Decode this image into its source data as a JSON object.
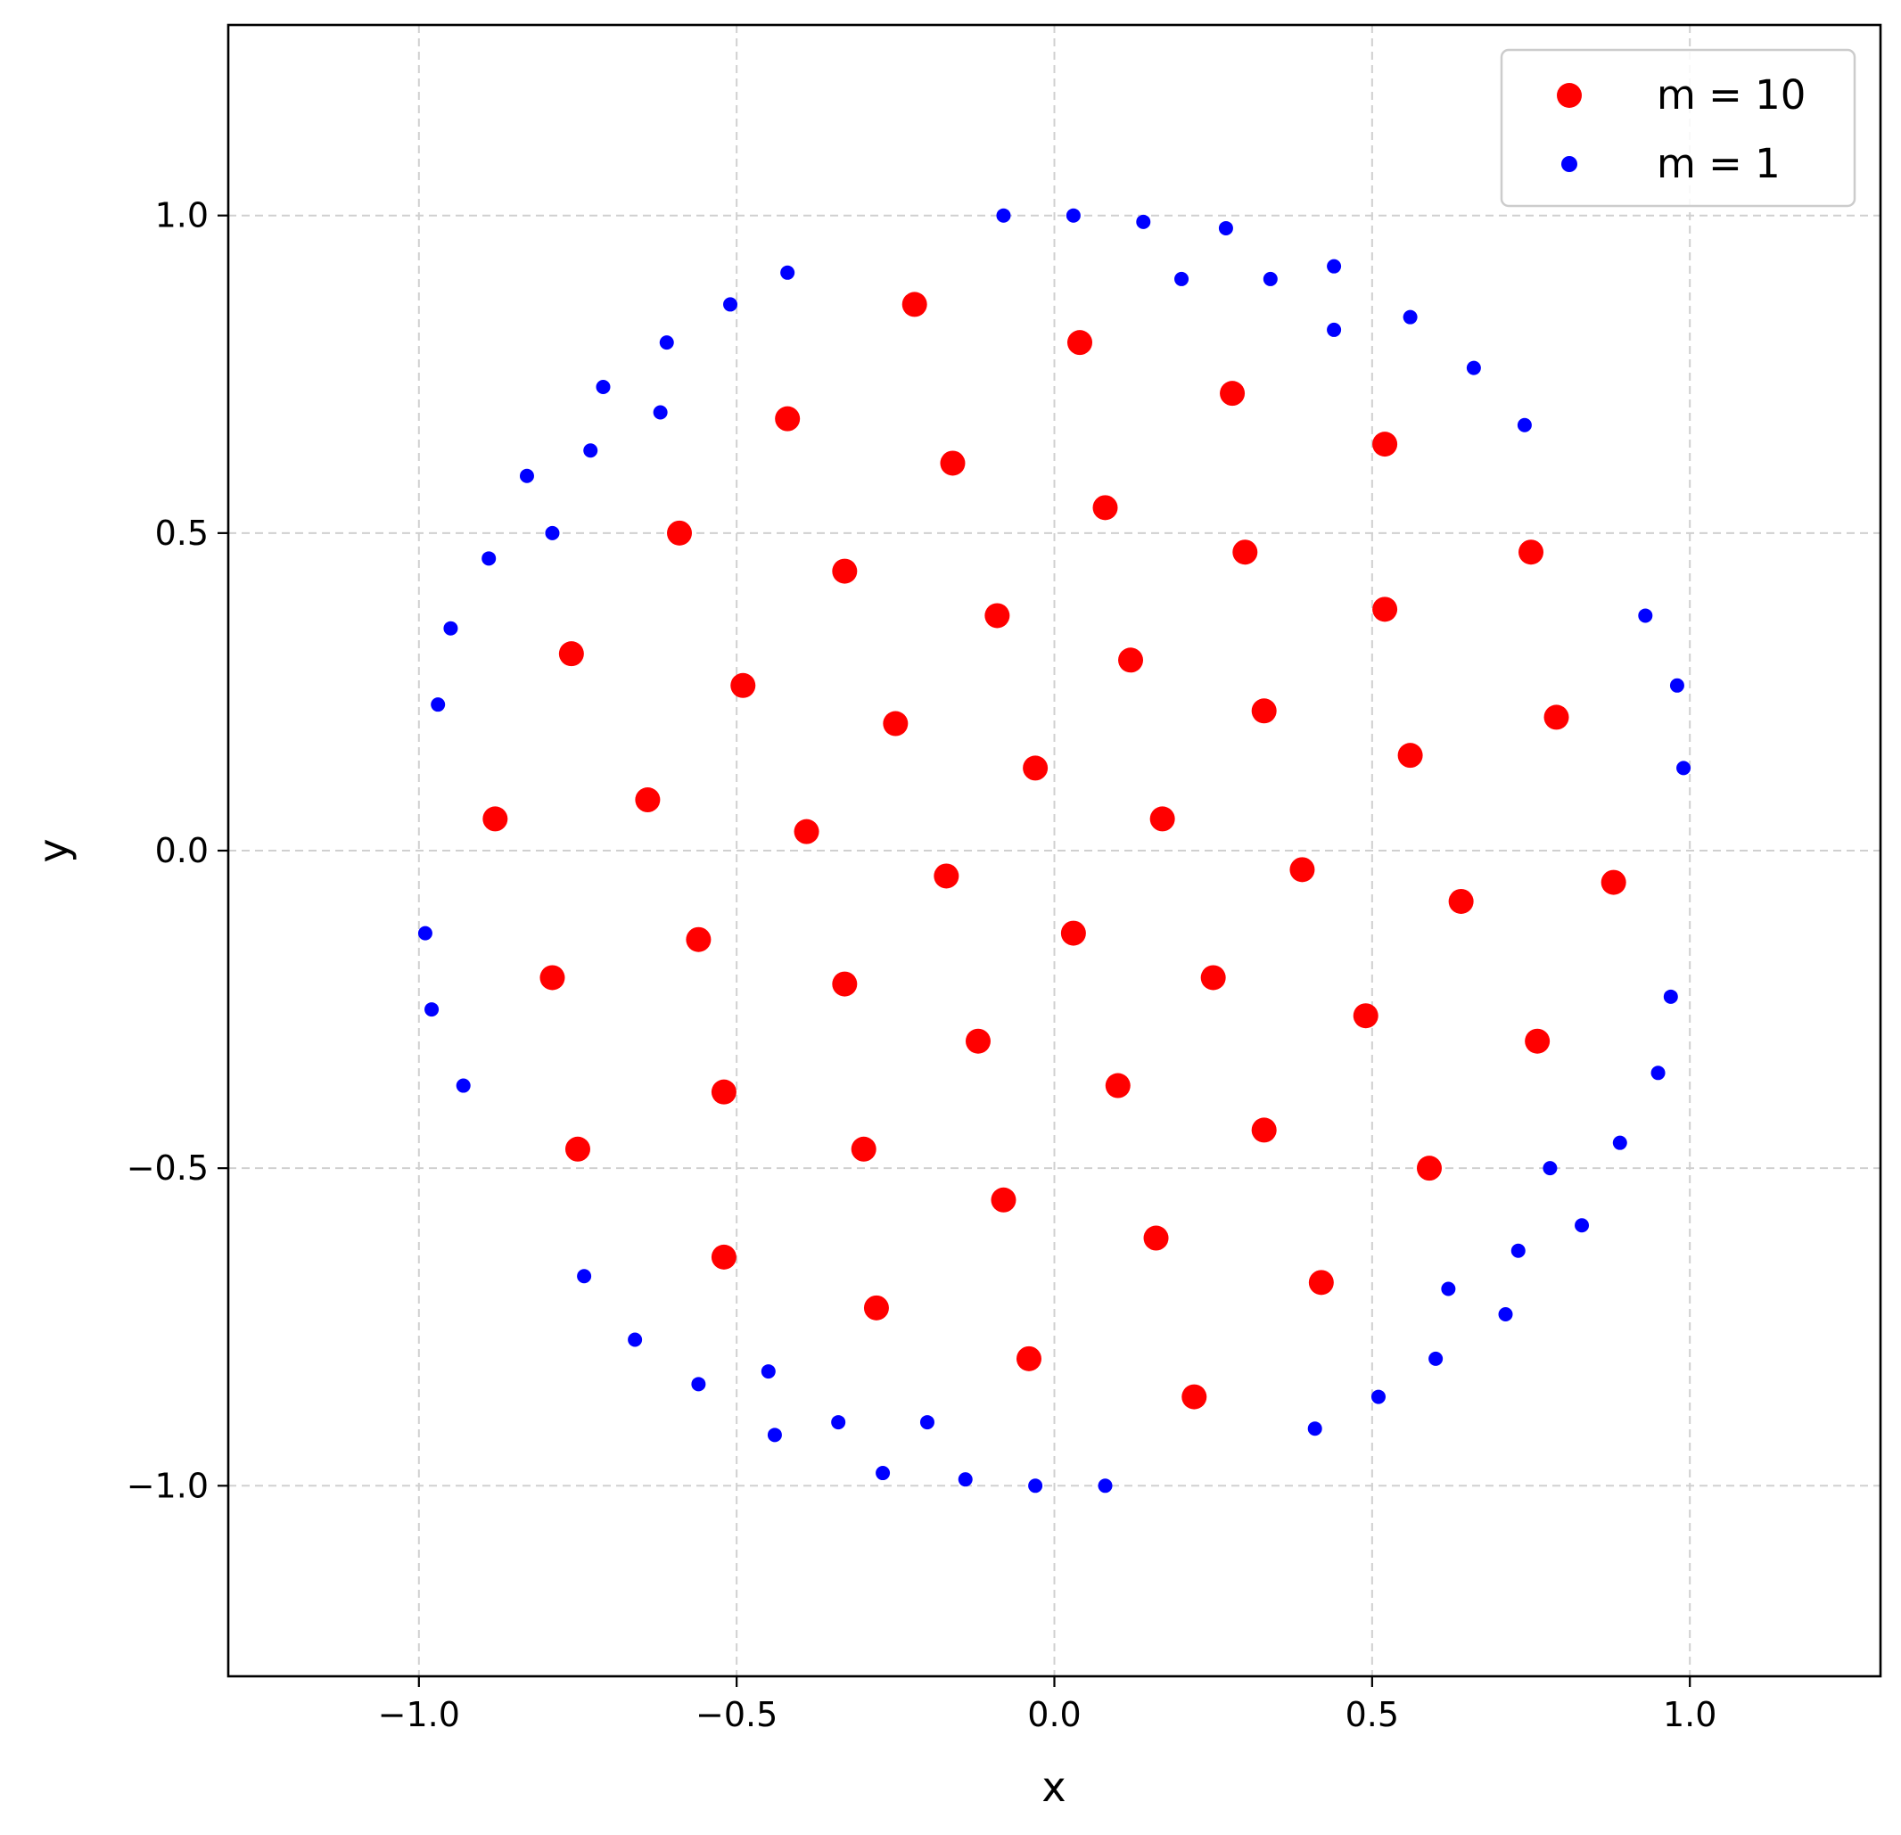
{
  "chart_data": {
    "type": "scatter",
    "xlabel": "x",
    "ylabel": "y",
    "xlim": [
      -1.3,
      1.3
    ],
    "ylim": [
      -1.3,
      1.3
    ],
    "grid": true,
    "grid_style": "dashed",
    "xticks": [
      -1.0,
      -0.5,
      0.0,
      0.5,
      1.0
    ],
    "yticks": [
      -1.0,
      -0.5,
      0.0,
      0.5,
      1.0
    ],
    "xtick_labels": [
      "−1.0",
      "−0.5",
      "0.0",
      "0.5",
      "1.0"
    ],
    "ytick_labels": [
      "−1.0",
      "−0.5",
      "0.0",
      "0.5",
      "1.0"
    ],
    "legend_position": "top-right",
    "series": [
      {
        "name": "m = 10",
        "color": "#ff0000",
        "marker_size": "large",
        "points": [
          [
            -0.22,
            0.86
          ],
          [
            0.04,
            0.8
          ],
          [
            0.28,
            0.72
          ],
          [
            -0.42,
            0.68
          ],
          [
            0.52,
            0.64
          ],
          [
            -0.16,
            0.61
          ],
          [
            0.08,
            0.54
          ],
          [
            -0.59,
            0.5
          ],
          [
            0.3,
            0.47
          ],
          [
            0.75,
            0.47
          ],
          [
            -0.33,
            0.44
          ],
          [
            0.52,
            0.38
          ],
          [
            -0.09,
            0.37
          ],
          [
            -0.76,
            0.31
          ],
          [
            0.12,
            0.3
          ],
          [
            -0.49,
            0.26
          ],
          [
            0.33,
            0.22
          ],
          [
            -0.25,
            0.2
          ],
          [
            0.79,
            0.21
          ],
          [
            0.56,
            0.15
          ],
          [
            -0.03,
            0.13
          ],
          [
            -0.64,
            0.08
          ],
          [
            -0.88,
            0.05
          ],
          [
            0.17,
            0.05
          ],
          [
            -0.39,
            0.03
          ],
          [
            0.39,
            -0.03
          ],
          [
            -0.17,
            -0.04
          ],
          [
            0.88,
            -0.05
          ],
          [
            0.64,
            -0.08
          ],
          [
            0.03,
            -0.13
          ],
          [
            -0.56,
            -0.14
          ],
          [
            0.25,
            -0.2
          ],
          [
            -0.79,
            -0.2
          ],
          [
            -0.33,
            -0.21
          ],
          [
            0.49,
            -0.26
          ],
          [
            -0.12,
            -0.3
          ],
          [
            0.76,
            -0.3
          ],
          [
            0.1,
            -0.37
          ],
          [
            -0.52,
            -0.38
          ],
          [
            0.33,
            -0.44
          ],
          [
            -0.3,
            -0.47
          ],
          [
            -0.75,
            -0.47
          ],
          [
            0.59,
            -0.5
          ],
          [
            -0.08,
            -0.55
          ],
          [
            0.16,
            -0.61
          ],
          [
            -0.52,
            -0.64
          ],
          [
            0.42,
            -0.68
          ],
          [
            -0.28,
            -0.72
          ],
          [
            -0.04,
            -0.8
          ],
          [
            0.22,
            -0.86
          ]
        ]
      },
      {
        "name": "m = 1",
        "color": "#0000ff",
        "marker_size": "small",
        "points": [
          [
            -0.08,
            1.0
          ],
          [
            0.03,
            1.0
          ],
          [
            0.14,
            0.99
          ],
          [
            0.27,
            0.98
          ],
          [
            -0.42,
            0.91
          ],
          [
            0.44,
            0.92
          ],
          [
            0.2,
            0.9
          ],
          [
            0.34,
            0.9
          ],
          [
            -0.51,
            0.86
          ],
          [
            0.56,
            0.84
          ],
          [
            0.44,
            0.82
          ],
          [
            -0.61,
            0.8
          ],
          [
            0.66,
            0.76
          ],
          [
            -0.71,
            0.73
          ],
          [
            -0.62,
            0.69
          ],
          [
            0.74,
            0.67
          ],
          [
            -0.73,
            0.63
          ],
          [
            -0.83,
            0.59
          ],
          [
            -0.79,
            0.5
          ],
          [
            -0.89,
            0.46
          ],
          [
            0.93,
            0.37
          ],
          [
            -0.95,
            0.35
          ],
          [
            0.98,
            0.26
          ],
          [
            -0.97,
            0.23
          ],
          [
            0.99,
            0.13
          ],
          [
            -0.99,
            -0.13
          ],
          [
            0.97,
            -0.23
          ],
          [
            -0.98,
            -0.25
          ],
          [
            0.95,
            -0.35
          ],
          [
            -0.93,
            -0.37
          ],
          [
            0.89,
            -0.46
          ],
          [
            0.78,
            -0.5
          ],
          [
            0.83,
            -0.59
          ],
          [
            0.73,
            -0.63
          ],
          [
            -0.74,
            -0.67
          ],
          [
            0.62,
            -0.69
          ],
          [
            0.71,
            -0.73
          ],
          [
            -0.66,
            -0.77
          ],
          [
            0.6,
            -0.8
          ],
          [
            -0.45,
            -0.82
          ],
          [
            -0.56,
            -0.84
          ],
          [
            0.51,
            -0.86
          ],
          [
            -0.34,
            -0.9
          ],
          [
            -0.2,
            -0.9
          ],
          [
            0.41,
            -0.91
          ],
          [
            -0.44,
            -0.92
          ],
          [
            -0.27,
            -0.98
          ],
          [
            -0.14,
            -0.99
          ],
          [
            -0.03,
            -1.0
          ],
          [
            0.08,
            -1.0
          ]
        ]
      }
    ]
  }
}
